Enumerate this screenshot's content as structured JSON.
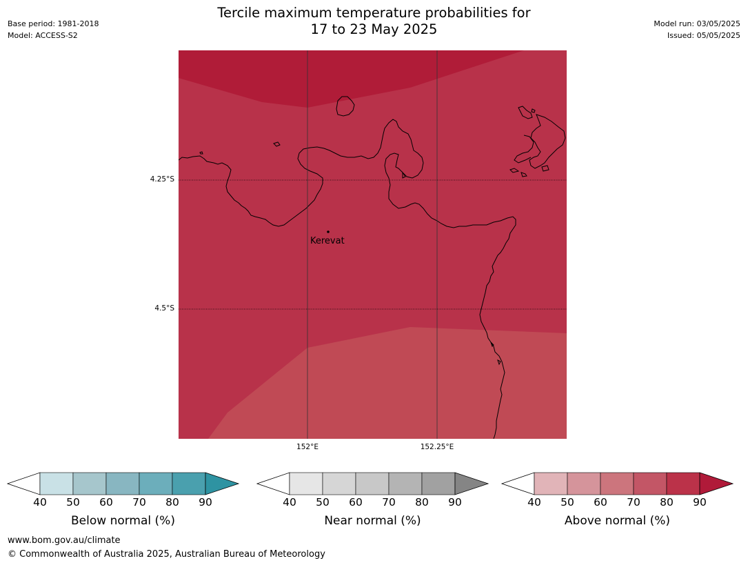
{
  "header": {
    "title_line1": "Tercile maximum temperature probabilities for",
    "title_line2": "17 to 23 May 2025",
    "base_period": "Base period: 1981-2018",
    "model": "Model: ACCESS-S2",
    "model_run": "Model run: 03/05/2025",
    "issued": "Issued: 05/05/2025"
  },
  "map": {
    "lat_labels": [
      "4.25°S",
      "4.5°S"
    ],
    "lon_labels": [
      "152°E",
      "152.25°E"
    ],
    "place": "Kerevat",
    "zone_colors": {
      "top": "#b01c38",
      "middle": "#b8324a",
      "bottom": "#c04a55",
      "coast": "#000000"
    }
  },
  "colorbars": [
    {
      "label": "Below normal (%)",
      "ticks": [
        "40",
        "50",
        "60",
        "70",
        "80",
        "90"
      ],
      "colors": [
        "#ffffff",
        "#c9e1e6",
        "#a6c6cc",
        "#88b6c1",
        "#6caebb",
        "#4aa0ae",
        "#2e93a2"
      ]
    },
    {
      "label": "Near normal (%)",
      "ticks": [
        "40",
        "50",
        "60",
        "70",
        "80",
        "90"
      ],
      "colors": [
        "#ffffff",
        "#e6e6e6",
        "#d6d6d6",
        "#c8c8c8",
        "#b4b4b4",
        "#a1a1a1",
        "#858585"
      ]
    },
    {
      "label": "Above normal (%)",
      "ticks": [
        "40",
        "50",
        "60",
        "70",
        "80",
        "90"
      ],
      "colors": [
        "#ffffff",
        "#e1b4b8",
        "#d5949b",
        "#cc757d",
        "#c35666",
        "#bb3249",
        "#b01a39"
      ]
    }
  ],
  "footer": {
    "website": "www.bom.gov.au/climate",
    "copyright": "© Commonwealth of Australia 2025, Australian Bureau of Meteorology"
  }
}
